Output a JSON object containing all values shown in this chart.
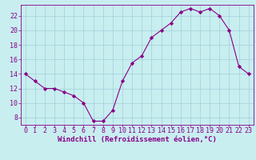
{
  "x": [
    0,
    1,
    2,
    3,
    4,
    5,
    6,
    7,
    8,
    9,
    10,
    11,
    12,
    13,
    14,
    15,
    16,
    17,
    18,
    19,
    20,
    21,
    22,
    23
  ],
  "y": [
    14,
    13,
    12,
    12,
    11.5,
    11,
    10,
    7.5,
    7.5,
    9,
    13,
    15.5,
    16.5,
    19,
    20,
    21,
    22.5,
    23,
    22.5,
    23,
    22,
    20,
    15,
    14
  ],
  "line_color": "#880088",
  "marker": "D",
  "marker_size": 2.2,
  "bg_color": "#c8eef0",
  "grid_color": "#a0cfd8",
  "xlabel": "Windchill (Refroidissement éolien,°C)",
  "xlabel_color": "#880088",
  "tick_color": "#880088",
  "ylim": [
    7,
    23.5
  ],
  "yticks": [
    8,
    10,
    12,
    14,
    16,
    18,
    20,
    22
  ],
  "xticks": [
    0,
    1,
    2,
    3,
    4,
    5,
    6,
    7,
    8,
    9,
    10,
    11,
    12,
    13,
    14,
    15,
    16,
    17,
    18,
    19,
    20,
    21,
    22,
    23
  ],
  "xlabel_fontsize": 6.5,
  "tick_fontsize": 6.0
}
